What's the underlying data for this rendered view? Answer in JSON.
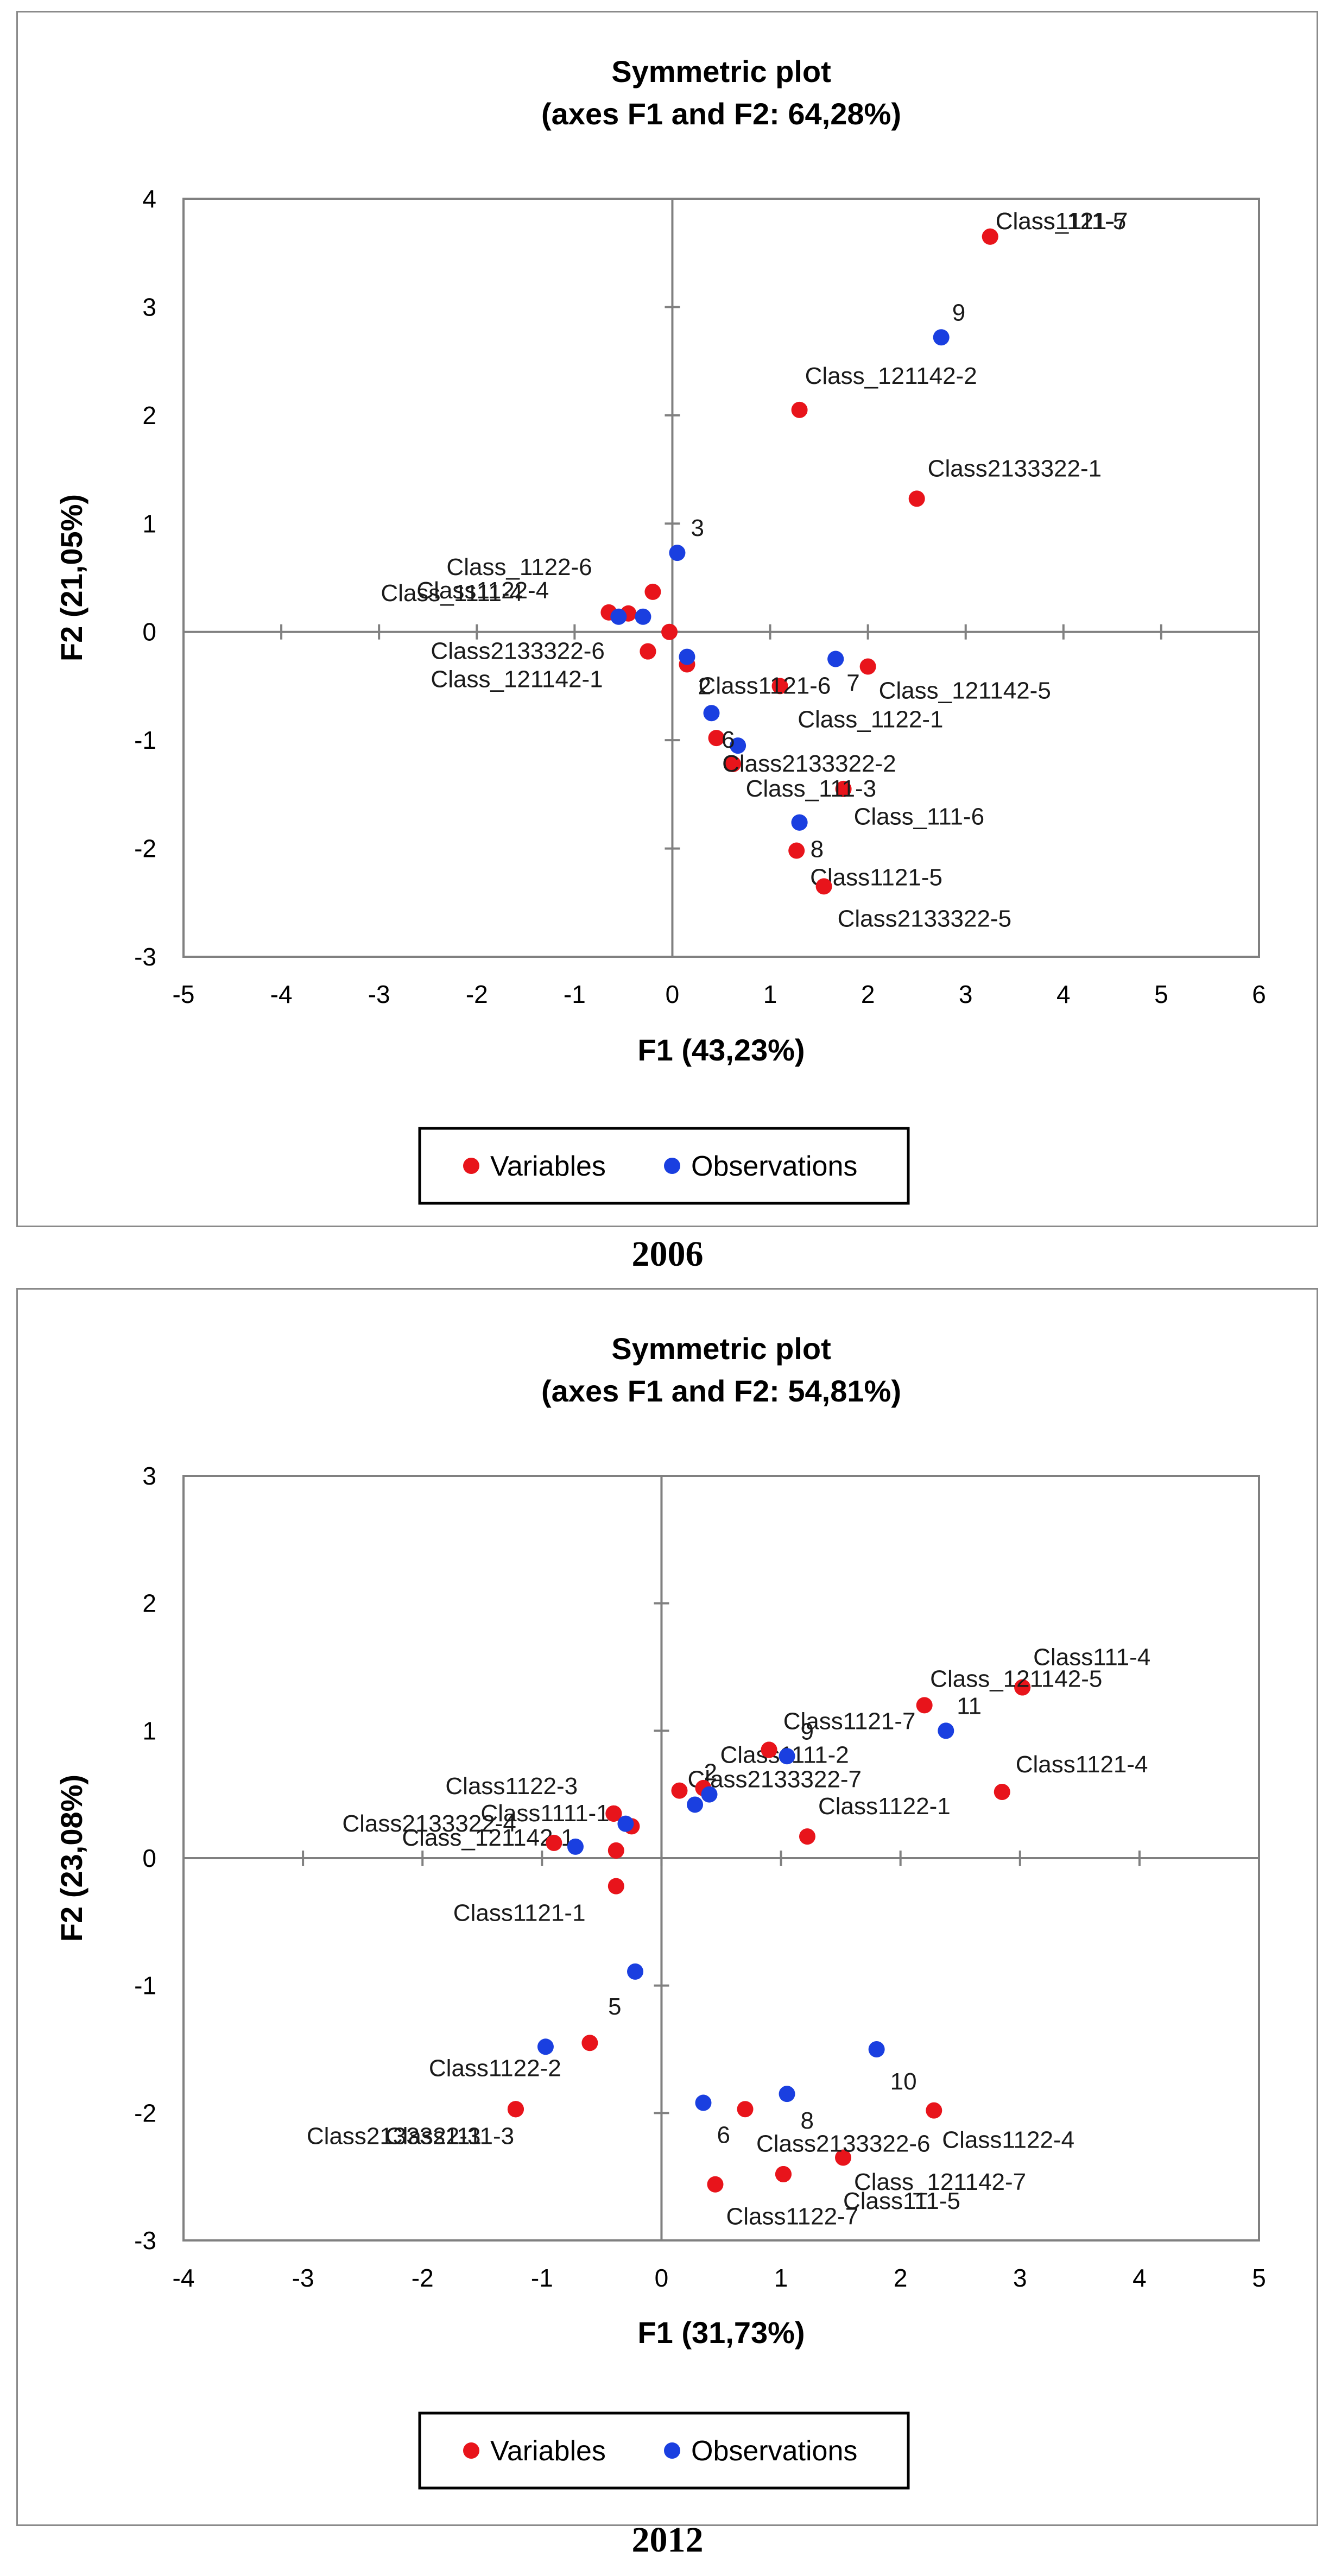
{
  "colors": {
    "variables": "#e8141b",
    "observations": "#1a3fe0",
    "axis": "#808080"
  },
  "chart_data": [
    {
      "type": "scatter",
      "title": "Symmetric plot",
      "subtitle": "(axes F1 and F2: 64,28%)",
      "xlabel": "F1 (43,23%)",
      "ylabel": "F2 (21,05%)",
      "xlim": [
        -5,
        6
      ],
      "ylim": [
        -3,
        4
      ],
      "xticks": [
        "-5",
        "-4",
        "-3",
        "-2",
        "-1",
        "0",
        "1",
        "2",
        "3",
        "4",
        "5",
        "6"
      ],
      "yticks": [
        "-3",
        "-2",
        "-1",
        "0",
        "1",
        "2",
        "3",
        "4"
      ],
      "caption": "2006",
      "legend": {
        "variables": "Variables",
        "observations": "Observations",
        "position": "bottom"
      },
      "series": [
        {
          "name": "Variables",
          "points": [
            {
              "x": 3.25,
              "y": 3.65,
              "label": "Class1121-7",
              "dx": 10,
              "dy": -28
            },
            {
              "x": 3.25,
              "y": 3.65,
              "label": "Class_111-5",
              "dx": 10,
              "dy": -28
            },
            {
              "x": 1.3,
              "y": 2.05,
              "label": "Class_121142-2",
              "dx": 10,
              "dy": -62
            },
            {
              "x": 2.5,
              "y": 1.23,
              "label": "Class2133322-1",
              "dx": 20,
              "dy": -55
            },
            {
              "x": -0.2,
              "y": 0.37,
              "label": "Class_1122-6",
              "dx": -380,
              "dy": -45
            },
            {
              "x": -0.65,
              "y": 0.18,
              "label": "Class_1111-4",
              "dx": -420,
              "dy": -35
            },
            {
              "x": -0.45,
              "y": 0.17,
              "label": "Class1122-4",
              "dx": -390,
              "dy": -42
            },
            {
              "x": -0.03,
              "y": 0.0,
              "label": "",
              "dx": 0,
              "dy": 0
            },
            {
              "x": -0.25,
              "y": -0.18,
              "label": "Class2133322-6",
              "dx": -400,
              "dy": 0
            },
            {
              "x": -0.25,
              "y": -0.18,
              "label": "Class_121142-1",
              "dx": -400,
              "dy": 52
            },
            {
              "x": 0.15,
              "y": -0.3,
              "label": "",
              "dx": 0,
              "dy": 0
            },
            {
              "x": 1.1,
              "y": -0.5,
              "label": "Class1121-6",
              "dx": -150,
              "dy": 0
            },
            {
              "x": 2.0,
              "y": -0.32,
              "label": "Class_121142-5",
              "dx": 20,
              "dy": 45
            },
            {
              "x": 0.45,
              "y": -0.98,
              "label": "",
              "dx": 0,
              "dy": 0
            },
            {
              "x": 0.62,
              "y": -1.22,
              "label": "Class2133322-2",
              "dx": -20,
              "dy": 0
            },
            {
              "x": 1.75,
              "y": -1.45,
              "label": "Class_111-3",
              "dx": -180,
              "dy": 0
            },
            {
              "x": 1.27,
              "y": -2.02,
              "label": "Class1121-5",
              "dx": 25,
              "dy": 50
            },
            {
              "x": 1.55,
              "y": -2.35,
              "label": "Class2133322-5",
              "dx": 25,
              "dy": 60
            }
          ]
        },
        {
          "name": "Observations",
          "points": [
            {
              "x": 2.75,
              "y": 2.72,
              "label": "9",
              "dx": 20,
              "dy": -45
            },
            {
              "x": 0.05,
              "y": 0.73,
              "label": "3",
              "dx": 25,
              "dy": -45
            },
            {
              "x": -0.55,
              "y": 0.14,
              "label": "",
              "dx": 0,
              "dy": 0
            },
            {
              "x": -0.3,
              "y": 0.14,
              "label": "",
              "dx": 0,
              "dy": 0
            },
            {
              "x": 0.15,
              "y": -0.23,
              "label": "2",
              "dx": 20,
              "dy": 55
            },
            {
              "x": 0.4,
              "y": -0.75,
              "label": "",
              "dx": 0,
              "dy": 0
            },
            {
              "x": 0.67,
              "y": -1.05,
              "label": "6",
              "dx": -30,
              "dy": -10
            },
            {
              "x": 1.67,
              "y": -0.25,
              "label": "7",
              "dx": 20,
              "dy": 45
            },
            {
              "x": 1.67,
              "y": -0.25,
              "label": "Class_1122-1",
              "dx": -70,
              "dy": 112
            },
            {
              "x": 1.3,
              "y": -1.76,
              "label": "8",
              "dx": 20,
              "dy": 50
            },
            {
              "x": 1.3,
              "y": -1.76,
              "label": "Class_111-6",
              "dx": 100,
              "dy": -10
            }
          ]
        }
      ]
    },
    {
      "type": "scatter",
      "title": "Symmetric plot",
      "subtitle": "(axes F1 and F2: 54,81%)",
      "xlabel": "F1 (31,73%)",
      "ylabel": "F2 (23,08%)",
      "xlim": [
        -4,
        5
      ],
      "ylim": [
        -3,
        3
      ],
      "xticks": [
        "-4",
        "-3",
        "-2",
        "-1",
        "0",
        "1",
        "2",
        "3",
        "4",
        "5"
      ],
      "yticks": [
        "-3",
        "-2",
        "-1",
        "0",
        "1",
        "2",
        "3"
      ],
      "caption": "2012",
      "legend": {
        "variables": "Variables",
        "observations": "Observations",
        "position": "bottom"
      },
      "series": [
        {
          "name": "Variables",
          "points": [
            {
              "x": 3.02,
              "y": 1.34,
              "label": "Class111-4",
              "dx": 20,
              "dy": -55
            },
            {
              "x": 3.02,
              "y": 1.34,
              "label": "Class_121142-5",
              "dx": -170,
              "dy": -15
            },
            {
              "x": 2.2,
              "y": 1.2,
              "label": "Class1121-7",
              "dx": -260,
              "dy": 30
            },
            {
              "x": 2.85,
              "y": 0.52,
              "label": "Class1121-4",
              "dx": 25,
              "dy": -50
            },
            {
              "x": 0.9,
              "y": 0.85,
              "label": "Class1111-2",
              "dx": -90,
              "dy": 10
            },
            {
              "x": 0.9,
              "y": 0.85,
              "label": "Class2133322-7",
              "dx": -150,
              "dy": 55
            },
            {
              "x": 0.35,
              "y": 0.55,
              "label": "",
              "dx": 0,
              "dy": 0
            },
            {
              "x": 0.15,
              "y": 0.53,
              "label": "",
              "dx": 0,
              "dy": 0
            },
            {
              "x": 1.22,
              "y": 0.17,
              "label": "Class1122-1",
              "dx": 20,
              "dy": -55
            },
            {
              "x": -0.25,
              "y": 0.25,
              "label": "",
              "dx": 0,
              "dy": 0
            },
            {
              "x": -0.4,
              "y": 0.35,
              "label": "Class1122-3",
              "dx": -310,
              "dy": -50
            },
            {
              "x": -0.4,
              "y": 0.35,
              "label": "Class1111-1",
              "dx": -245,
              "dy": 0
            },
            {
              "x": -0.4,
              "y": 0.35,
              "label": "Class_121142-1",
              "dx": -390,
              "dy": 45
            },
            {
              "x": -0.9,
              "y": 0.12,
              "label": "Class2133322-4",
              "dx": -390,
              "dy": -35
            },
            {
              "x": -0.38,
              "y": 0.06,
              "label": "",
              "dx": 0,
              "dy": 0
            },
            {
              "x": -0.38,
              "y": -0.22,
              "label": "Class1121-1",
              "dx": -300,
              "dy": 50
            },
            {
              "x": -0.6,
              "y": -1.45,
              "label": "",
              "dx": 0,
              "dy": 0
            },
            {
              "x": -1.22,
              "y": -1.97,
              "label": "Class1122-2",
              "dx": -160,
              "dy": -75
            },
            {
              "x": -1.22,
              "y": -1.97,
              "label": "Class1111-3",
              "dx": -240,
              "dy": 50
            },
            {
              "x": -1.22,
              "y": -1.97,
              "label": "Class2133322-3",
              "dx": -385,
              "dy": 50
            },
            {
              "x": 0.7,
              "y": -1.97,
              "label": "",
              "dx": 0,
              "dy": 0
            },
            {
              "x": 2.28,
              "y": -1.98,
              "label": "Class1122-4",
              "dx": 15,
              "dy": 55
            },
            {
              "x": 1.52,
              "y": -2.35,
              "label": "Class2133322-6",
              "dx": -160,
              "dy": -25
            },
            {
              "x": 1.02,
              "y": -2.48,
              "label": "Class_121142-7",
              "dx": 130,
              "dy": 15
            },
            {
              "x": 1.02,
              "y": -2.48,
              "label": "Class111-5",
              "dx": 110,
              "dy": 50
            },
            {
              "x": 0.45,
              "y": -2.56,
              "label": "Class1122-7",
              "dx": 20,
              "dy": 60
            }
          ]
        },
        {
          "name": "Observations",
          "points": [
            {
              "x": 2.38,
              "y": 1.0,
              "label": "11",
              "dx": 20,
              "dy": -45
            },
            {
              "x": 1.05,
              "y": 0.8,
              "label": "9",
              "dx": 25,
              "dy": -45
            },
            {
              "x": 0.4,
              "y": 0.5,
              "label": "2",
              "dx": -10,
              "dy": -40
            },
            {
              "x": 0.28,
              "y": 0.42,
              "label": "",
              "dx": 0,
              "dy": 0
            },
            {
              "x": -0.3,
              "y": 0.27,
              "label": "",
              "dx": 0,
              "dy": 0
            },
            {
              "x": -0.72,
              "y": 0.09,
              "label": "",
              "dx": 0,
              "dy": 0
            },
            {
              "x": -0.22,
              "y": -0.89,
              "label": "5",
              "dx": -50,
              "dy": 65
            },
            {
              "x": -0.97,
              "y": -1.48,
              "label": "",
              "dx": 0,
              "dy": 0
            },
            {
              "x": 1.8,
              "y": -1.5,
              "label": "10",
              "dx": 25,
              "dy": 60
            },
            {
              "x": 1.05,
              "y": -1.85,
              "label": "8",
              "dx": 25,
              "dy": 50
            },
            {
              "x": 0.35,
              "y": -1.92,
              "label": "6",
              "dx": 25,
              "dy": 60
            }
          ]
        }
      ]
    }
  ]
}
